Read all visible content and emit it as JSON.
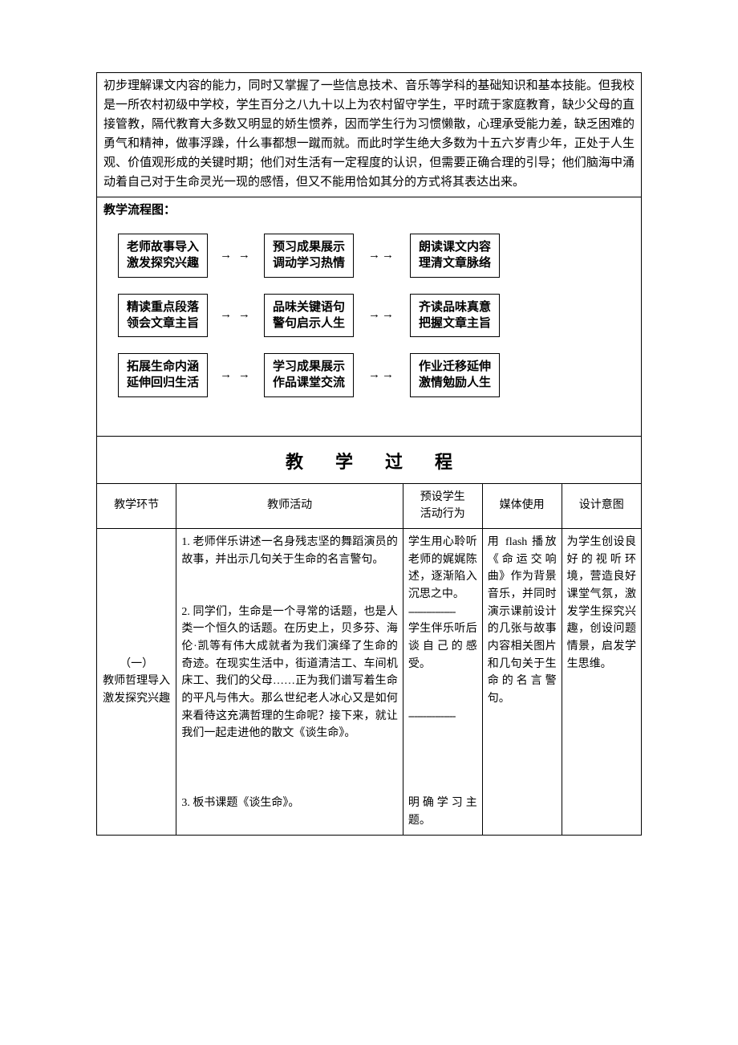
{
  "intro_text": "初步理解课文内容的能力，同时又掌握了一些信息技术、音乐等学科的基础知识和基本技能。但我校是一所农村初级中学校，学生百分之八九十以上为农村留守学生，平时疏于家庭教育，缺少父母的直接管教，隔代教育大多数又明显的娇生惯养，因而学生行为习惯懒散，心理承受能力差，缺乏困难的勇气和精神，做事浮躁，什么事都想一蹴而就。而此时学生绝大多数为十五六岁青少年，正处于人生观、价值观形成的关键时期；他们对生活有一定程度的认识，但需要正确合理的引导；他们脑海中涌动着自己对于生命灵光一现的感悟，但又不能用恰如其分的方式将其表达出来。",
  "flow": {
    "title": "教学流程图：",
    "arrow_glyph": "→ →",
    "arrow_glyph2": "→→",
    "rows": [
      [
        {
          "l1": "老师故事导入",
          "l2": "激发探究兴趣"
        },
        {
          "l1": "预习成果展示",
          "l2": "调动学习热情"
        },
        {
          "l1": "朗读课文内容",
          "l2": "理清文章脉络"
        }
      ],
      [
        {
          "l1": "精读重点段落",
          "l2": "领会文章主旨"
        },
        {
          "l1": "品味关键语句",
          "l2": "警句启示人生"
        },
        {
          "l1": "齐读品味真意",
          "l2": "把握文章主旨"
        }
      ],
      [
        {
          "l1": "拓展生命内涵",
          "l2": "延伸回归生活"
        },
        {
          "l1": "学习成果展示",
          "l2": "作品课堂交流"
        },
        {
          "l1": "作业迁移延伸",
          "l2": "激情勉励人生"
        }
      ]
    ]
  },
  "process": {
    "heading": "教学过程",
    "columns": [
      "教学环节",
      "教师活动",
      "预设学生\n活动行为",
      "媒体使用",
      "设计意图"
    ],
    "row1": {
      "stage_num": "（一）",
      "stage_l1": "教师哲理导入",
      "stage_l2": "激发探究兴趣",
      "teacher_p1": "1. 老师伴乐讲述一名身残志坚的舞蹈演员的故事，并出示几句关于生命的名言警句。",
      "teacher_p2": "2. 同学们，生命是一个寻常的话题，也是人类一个恒久的话题。在历史上，贝多芬、海伦·凯等有伟大成就者为我们演绎了生命的奇迹。在现实生活中，街道清洁工、车间机床工、我们的父母……正为我们谱写着生命的平凡与伟大。那么世纪老人冰心又是如何来看待这充满哲理的生命呢？接下来，就让我们一起走进他的散文《谈生命》。",
      "teacher_p3": "3. 板书课题《谈生命》。",
      "student_p1": "学生用心聆听老师的娓娓陈述，逐渐陷入沉思之中。",
      "student_p2": "学生伴乐听后谈自己的感受。",
      "student_p3": "明确学习主题。",
      "media": "用 flash 播放《命运交响曲》作为背景音乐，并同时演示课前设计的几张与故事内容相关图片和几句关于生命的名言警句。",
      "intent": "为学生创设良好的视听环境，营造良好课堂气氛，激发学生探究兴趣，创设问题情景，启发学生思维。",
      "dash": "----------------"
    }
  }
}
